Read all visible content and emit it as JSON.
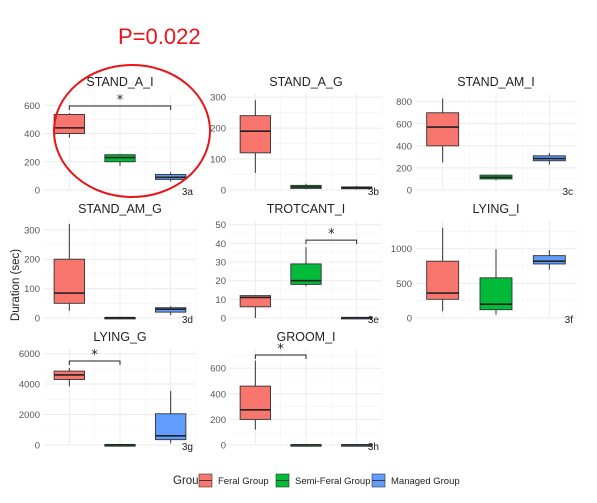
{
  "figure": {
    "p_value": "P=0.022",
    "ylabel": "Duration (sec)",
    "legend": {
      "title": "Group",
      "items": [
        {
          "label": "Feral Group",
          "color": "#f8766d"
        },
        {
          "label": "Semi-Feral Group",
          "color": "#00ba38"
        },
        {
          "label": "Managed Group",
          "color": "#619cff"
        }
      ]
    },
    "highlight": {
      "panel": "STAND_A_I",
      "shape": "ellipse",
      "color": "#e8141a"
    }
  },
  "chart_data": [
    {
      "type": "box",
      "title": "STAND_A_I",
      "tag": "3a",
      "ylim": [
        0,
        680
      ],
      "ticks": [
        0,
        200,
        400,
        600
      ],
      "significance": [
        {
          "from": 0,
          "to": 2,
          "label": "*"
        }
      ],
      "series": [
        {
          "name": "Feral Group",
          "min": 370,
          "q1": 400,
          "median": 440,
          "q3": 535,
          "max": 545
        },
        {
          "name": "Semi-Feral Group",
          "min": 170,
          "q1": 200,
          "median": 230,
          "q3": 250,
          "max": 255
        },
        {
          "name": "Managed Group",
          "min": 60,
          "q1": 75,
          "median": 90,
          "q3": 110,
          "max": 125
        }
      ]
    },
    {
      "type": "box",
      "title": "STAND_A_G",
      "tag": "3b",
      "ylim": [
        0,
        310
      ],
      "ticks": [
        0,
        100,
        200,
        300
      ],
      "significance": [],
      "series": [
        {
          "name": "Feral Group",
          "min": 55,
          "q1": 120,
          "median": 190,
          "q3": 240,
          "max": 290
        },
        {
          "name": "Semi-Feral Group",
          "min": 3,
          "q1": 5,
          "median": 10,
          "q3": 15,
          "max": 20
        },
        {
          "name": "Managed Group",
          "min": 2,
          "q1": 4,
          "median": 7,
          "q3": 10,
          "max": 13
        }
      ]
    },
    {
      "type": "box",
      "title": "STAND_AM_I",
      "tag": "3c",
      "ylim": [
        0,
        870
      ],
      "ticks": [
        0,
        200,
        400,
        600,
        800
      ],
      "significance": [],
      "series": [
        {
          "name": "Feral Group",
          "min": 250,
          "q1": 400,
          "median": 570,
          "q3": 700,
          "max": 830
        },
        {
          "name": "Semi-Feral Group",
          "min": 90,
          "q1": 100,
          "median": 115,
          "q3": 135,
          "max": 140
        },
        {
          "name": "Managed Group",
          "min": 230,
          "q1": 265,
          "median": 285,
          "q3": 310,
          "max": 335
        }
      ]
    },
    {
      "type": "box",
      "title": "STAND_AM_G",
      "tag": "3d",
      "ylim": [
        0,
        330
      ],
      "ticks": [
        0,
        100,
        200,
        300
      ],
      "significance": [],
      "series": [
        {
          "name": "Feral Group",
          "min": 25,
          "q1": 50,
          "median": 85,
          "q3": 200,
          "max": 320
        },
        {
          "name": "Semi-Feral Group",
          "min": 0,
          "q1": 0,
          "median": 1,
          "q3": 2,
          "max": 2
        },
        {
          "name": "Managed Group",
          "min": 10,
          "q1": 20,
          "median": 30,
          "q3": 35,
          "max": 40
        }
      ]
    },
    {
      "type": "box",
      "title": "TROTCANT_I",
      "tag": "3e",
      "ylim": [
        0,
        52
      ],
      "ticks": [
        0,
        10,
        20,
        30,
        40,
        50
      ],
      "significance": [
        {
          "from": 1,
          "to": 2,
          "label": "*"
        }
      ],
      "series": [
        {
          "name": "Feral Group",
          "min": 0,
          "q1": 6,
          "median": 11,
          "q3": 12,
          "max": 12
        },
        {
          "name": "Semi-Feral Group",
          "min": 17,
          "q1": 18,
          "median": 20,
          "q3": 29,
          "max": 38
        },
        {
          "name": "Managed Group",
          "min": 0,
          "q1": 0,
          "median": 0.2,
          "q3": 0.3,
          "max": 0.5
        }
      ]
    },
    {
      "type": "box",
      "title": "LYING_I",
      "tag": "3f",
      "ylim": [
        0,
        1400
      ],
      "ticks": [
        0,
        500,
        1000
      ],
      "significance": [],
      "series": [
        {
          "name": "Feral Group",
          "min": 100,
          "q1": 270,
          "median": 360,
          "q3": 820,
          "max": 1300
        },
        {
          "name": "Semi-Feral Group",
          "min": 50,
          "q1": 120,
          "median": 200,
          "q3": 580,
          "max": 990
        },
        {
          "name": "Managed Group",
          "min": 700,
          "q1": 780,
          "median": 820,
          "q3": 900,
          "max": 980
        }
      ]
    },
    {
      "type": "box",
      "title": "LYING_G",
      "tag": "3g",
      "ylim": [
        0,
        6300
      ],
      "ticks": [
        0,
        2000,
        4000,
        6000
      ],
      "significance": [
        {
          "from": 0,
          "to": 1,
          "label": "*"
        }
      ],
      "series": [
        {
          "name": "Feral Group",
          "min": 3850,
          "q1": 4300,
          "median": 4600,
          "q3": 4850,
          "max": 5050
        },
        {
          "name": "Semi-Feral Group",
          "min": 0,
          "q1": 0,
          "median": 10,
          "q3": 20,
          "max": 30
        },
        {
          "name": "Managed Group",
          "min": 100,
          "q1": 350,
          "median": 600,
          "q3": 2050,
          "max": 3550
        }
      ]
    },
    {
      "type": "box",
      "title": "GROOM_I",
      "tag": "3h",
      "ylim": [
        0,
        750
      ],
      "ticks": [
        0,
        200,
        400,
        600
      ],
      "significance": [
        {
          "from": 0,
          "to": 1,
          "label": "*"
        }
      ],
      "series": [
        {
          "name": "Feral Group",
          "min": 120,
          "q1": 200,
          "median": 275,
          "q3": 460,
          "max": 660
        },
        {
          "name": "Semi-Feral Group",
          "min": 0,
          "q1": 0,
          "median": 1,
          "q3": 2,
          "max": 3
        },
        {
          "name": "Managed Group",
          "min": 0,
          "q1": 0,
          "median": 1,
          "q3": 2,
          "max": 3
        }
      ]
    }
  ]
}
